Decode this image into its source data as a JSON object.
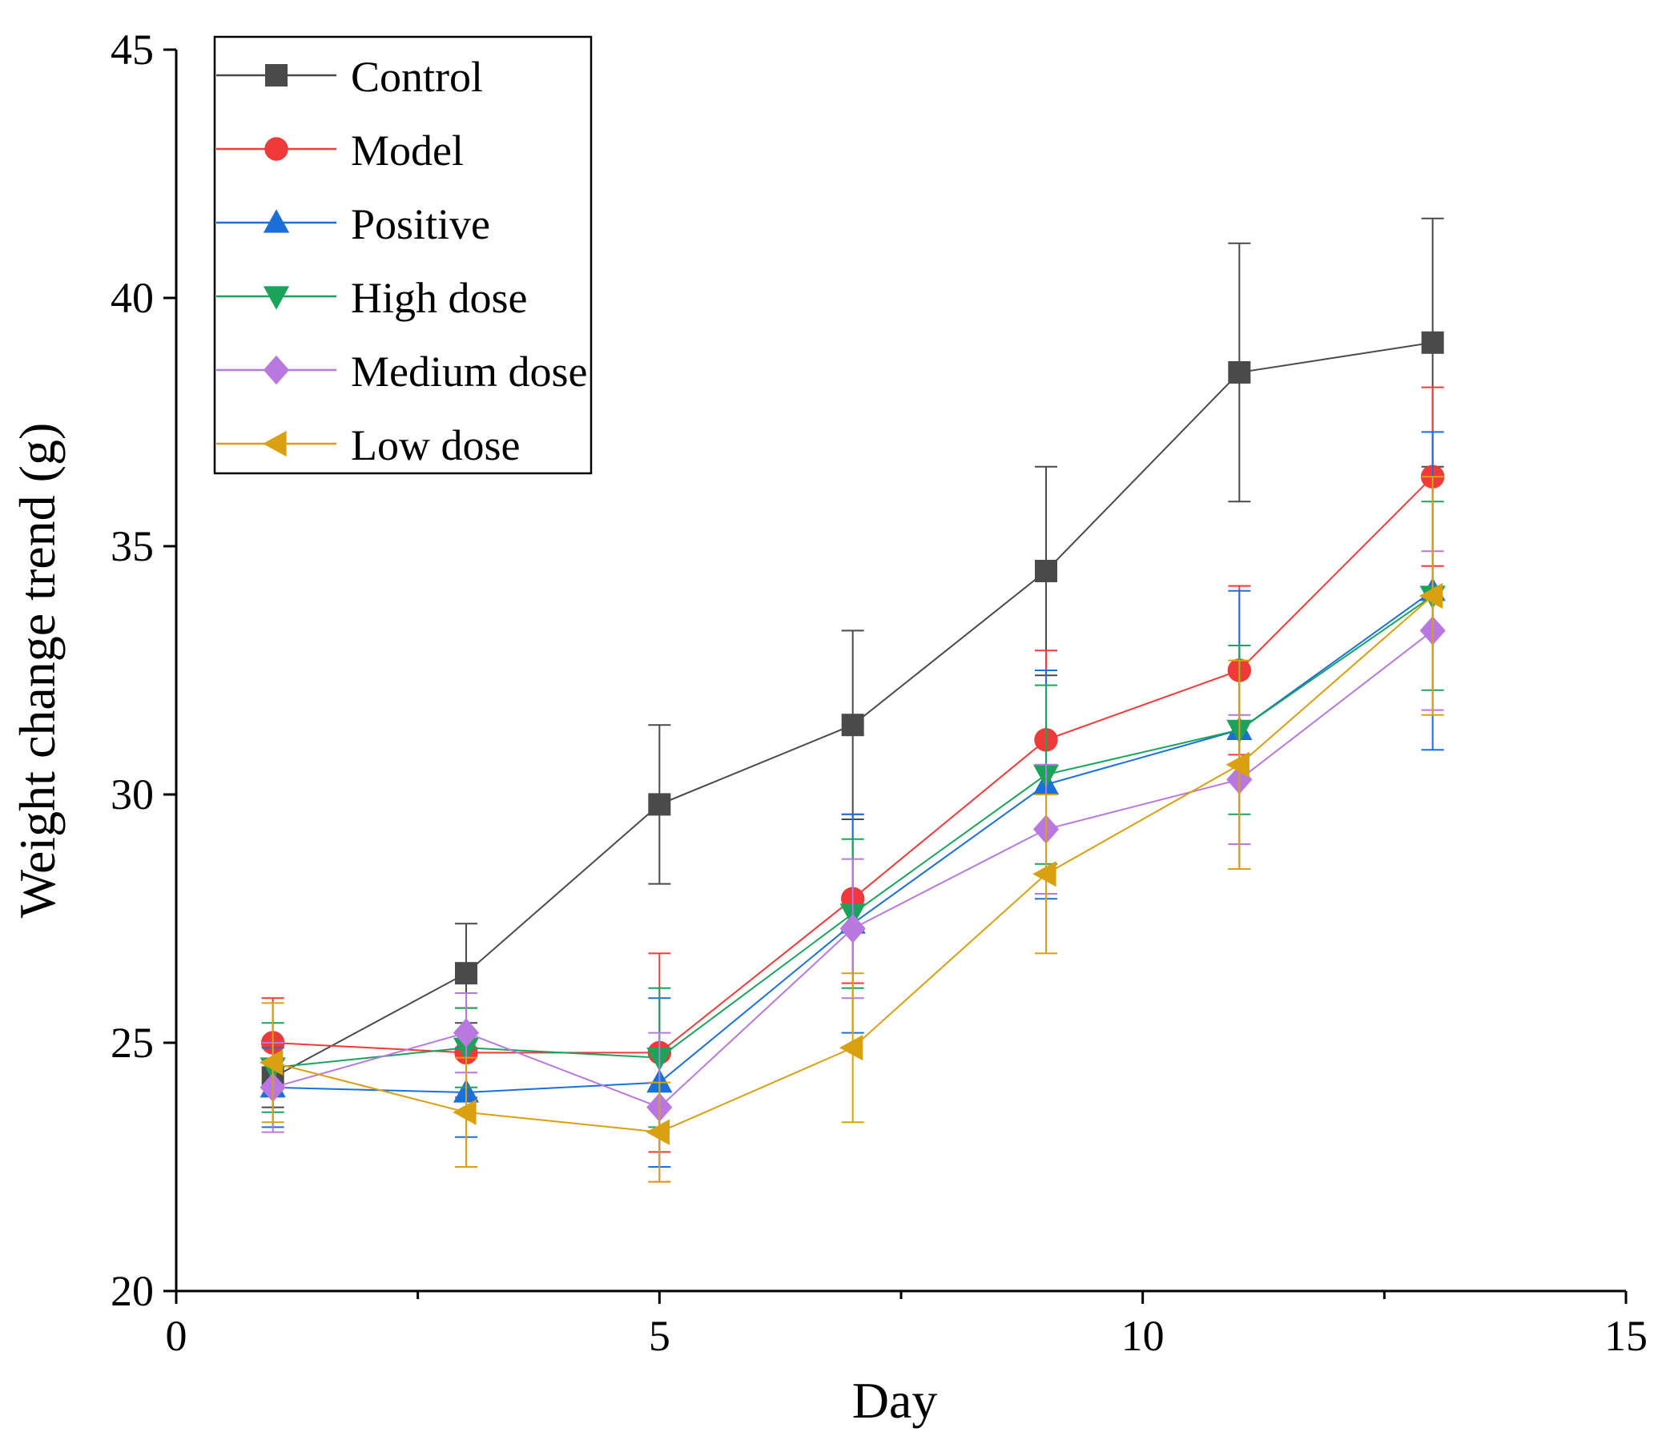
{
  "chart_data": {
    "type": "line",
    "title": "",
    "xlabel": "Day",
    "ylabel": "Weight change trend (g)",
    "xlim": [
      0,
      15
    ],
    "ylim": [
      20,
      45
    ],
    "x_ticks": [
      0,
      5,
      10,
      15
    ],
    "x_minor_ticks": [
      2.5,
      7.5,
      12.5
    ],
    "y_ticks": [
      20,
      25,
      30,
      35,
      40,
      45
    ],
    "x_tick_labels": [
      "0",
      "5",
      "10",
      "15"
    ],
    "y_tick_labels": [
      "20",
      "25",
      "30",
      "35",
      "40",
      "45"
    ],
    "grid": false,
    "legend_position": "top-left",
    "x": [
      1,
      3,
      5,
      7,
      9,
      11,
      13
    ],
    "series": [
      {
        "name": "Control",
        "marker": "square",
        "color": "#4a4a4a",
        "values": [
          24.3,
          26.4,
          29.8,
          31.4,
          34.5,
          38.5,
          39.1
        ],
        "error": [
          0.6,
          1.0,
          1.6,
          1.9,
          2.1,
          2.6,
          2.5
        ]
      },
      {
        "name": "Model",
        "marker": "circle",
        "color": "#f03a3a",
        "values": [
          25.0,
          24.8,
          24.8,
          27.9,
          31.1,
          32.5,
          36.4
        ],
        "error": [
          0.9,
          0.9,
          2.0,
          1.7,
          1.8,
          1.7,
          1.8
        ]
      },
      {
        "name": "Positive",
        "marker": "triangle-up",
        "color": "#1a6fdb",
        "values": [
          24.1,
          24.0,
          24.2,
          27.4,
          30.2,
          31.3,
          34.1
        ],
        "error": [
          0.8,
          0.9,
          1.7,
          2.2,
          2.3,
          2.8,
          3.2
        ]
      },
      {
        "name": "High dose",
        "marker": "triangle-down",
        "color": "#1aa35a",
        "values": [
          24.5,
          24.9,
          24.7,
          27.6,
          30.4,
          31.3,
          34.0
        ],
        "error": [
          0.9,
          0.8,
          1.4,
          1.5,
          1.8,
          1.7,
          1.9
        ]
      },
      {
        "name": "Medium dose",
        "marker": "diamond",
        "color": "#b878e0",
        "values": [
          24.1,
          25.2,
          23.7,
          27.3,
          29.3,
          30.3,
          33.3
        ],
        "error": [
          0.9,
          0.8,
          1.5,
          1.4,
          1.3,
          1.3,
          1.6
        ]
      },
      {
        "name": "Low dose",
        "marker": "triangle-left",
        "color": "#d9a010",
        "values": [
          24.6,
          23.6,
          23.2,
          24.9,
          28.4,
          30.6,
          34.0
        ],
        "error": [
          1.2,
          1.1,
          1.0,
          1.5,
          1.6,
          2.1,
          2.4
        ]
      }
    ]
  }
}
